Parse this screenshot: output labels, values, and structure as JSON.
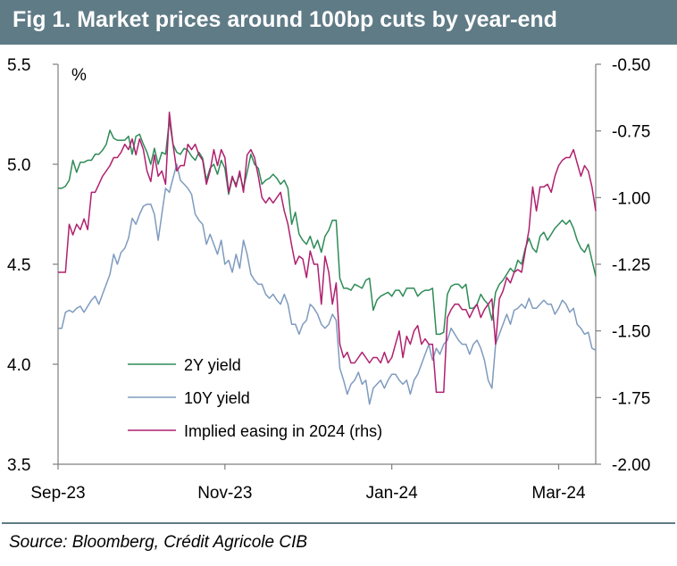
{
  "header": {
    "title": "Fig 1. Market prices around 100bp cuts by year-end"
  },
  "footer": {
    "source": "Source: Bloomberg, Crédit Agricole CIB"
  },
  "colors": {
    "title_bg": "#5f7b86",
    "yield2y": "#2e8b57",
    "yield10y": "#7f9bbf",
    "easing": "#b0206f"
  },
  "chart_data": {
    "type": "line",
    "title": "Fig 1. Market prices around 100bp cuts by year-end",
    "ylabel": "%",
    "ylim": [
      3.5,
      5.5
    ],
    "y_ticks": [
      "5.5",
      "5.0",
      "4.5",
      "4.0",
      "3.5"
    ],
    "y2lim": [
      -2.0,
      -0.5
    ],
    "y2_ticks": [
      "-0.50",
      "-0.75",
      "-1.00",
      "-1.25",
      "-1.50",
      "-1.75",
      "-2.00"
    ],
    "x_ticks": [
      "Sep-23",
      "Nov-23",
      "Jan-24",
      "Mar-24"
    ],
    "x_tick_index": [
      0,
      45,
      90,
      135
    ],
    "grid": false,
    "legend_position": "bottom-left",
    "series": [
      {
        "name": "2Y yield",
        "axis": "left",
        "values": [
          4.88,
          4.88,
          4.89,
          4.92,
          5.02,
          4.96,
          5.01,
          5.01,
          5.02,
          5.02,
          5.05,
          5.05,
          5.07,
          5.1,
          5.17,
          5.13,
          5.12,
          5.12,
          5.12,
          5.14,
          5.05,
          5.14,
          5.15,
          5.1,
          5.06,
          5.0,
          5.08,
          5.0,
          5.06,
          5.05,
          5.22,
          5.1,
          5.06,
          5.05,
          5.08,
          5.07,
          5.04,
          5.02,
          5.06,
          5.03,
          4.92,
          4.98,
          5.0,
          4.95,
          5.02,
          4.98,
          4.85,
          4.93,
          4.9,
          4.95,
          4.88,
          4.96,
          5.05,
          5.0,
          4.98,
          4.9,
          4.92,
          4.93,
          4.95,
          4.93,
          4.9,
          4.92,
          4.88,
          4.7,
          4.76,
          4.65,
          4.62,
          4.6,
          4.64,
          4.58,
          4.62,
          4.56,
          4.64,
          4.67,
          4.72,
          4.72,
          4.43,
          4.38,
          4.38,
          4.37,
          4.4,
          4.39,
          4.38,
          4.42,
          4.43,
          4.27,
          4.32,
          4.34,
          4.35,
          4.36,
          4.34,
          4.37,
          4.37,
          4.34,
          4.38,
          4.38,
          4.38,
          4.34,
          4.36,
          4.37,
          4.37,
          4.38,
          4.15,
          4.15,
          4.16,
          4.35,
          4.39,
          4.4,
          4.4,
          4.38,
          4.4,
          4.28,
          4.28,
          4.3,
          4.35,
          4.32,
          4.3,
          4.22,
          4.36,
          4.4,
          4.42,
          4.45,
          4.48,
          4.46,
          4.52,
          4.5,
          4.58,
          4.63,
          4.58,
          4.56,
          4.64,
          4.66,
          4.62,
          4.65,
          4.68,
          4.7,
          4.72,
          4.7,
          4.72,
          4.68,
          4.62,
          4.58,
          4.56,
          4.6,
          4.52,
          4.44
        ]
      },
      {
        "name": "10Y yield",
        "axis": "left",
        "values": [
          4.18,
          4.18,
          4.26,
          4.27,
          4.26,
          4.28,
          4.29,
          4.26,
          4.29,
          4.32,
          4.34,
          4.3,
          4.35,
          4.4,
          4.45,
          4.55,
          4.5,
          4.56,
          4.58,
          4.63,
          4.73,
          4.7,
          4.75,
          4.79,
          4.8,
          4.8,
          4.75,
          4.62,
          4.75,
          4.88,
          4.86,
          4.93,
          5.0,
          4.92,
          4.9,
          4.88,
          4.85,
          4.75,
          4.72,
          4.7,
          4.6,
          4.65,
          4.6,
          4.55,
          4.62,
          4.5,
          4.52,
          4.46,
          4.55,
          4.48,
          4.62,
          4.55,
          4.45,
          4.42,
          4.4,
          4.4,
          4.35,
          4.33,
          4.35,
          4.32,
          4.3,
          4.35,
          4.3,
          4.2,
          4.2,
          4.15,
          4.2,
          4.22,
          4.3,
          4.28,
          4.25,
          4.2,
          4.18,
          4.2,
          4.25,
          4.22,
          3.98,
          3.92,
          3.85,
          3.9,
          3.92,
          3.96,
          3.9,
          3.92,
          3.8,
          3.88,
          3.9,
          3.92,
          3.88,
          3.92,
          3.95,
          3.95,
          3.92,
          3.9,
          3.92,
          3.85,
          3.92,
          3.95,
          4.0,
          4.05,
          4.1,
          4.02,
          4.08,
          4.05,
          4.1,
          4.12,
          4.18,
          4.15,
          4.12,
          4.1,
          4.1,
          4.05,
          4.1,
          4.12,
          4.08,
          4.02,
          3.92,
          3.88,
          4.1,
          4.15,
          4.2,
          4.25,
          4.2,
          4.27,
          4.28,
          4.3,
          4.28,
          4.33,
          4.28,
          4.28,
          4.3,
          4.32,
          4.3,
          4.3,
          4.25,
          4.28,
          4.32,
          4.3,
          4.26,
          4.28,
          4.2,
          4.18,
          4.15,
          4.16,
          4.08,
          4.07
        ]
      },
      {
        "name": "Implied easing in 2024 (rhs)",
        "axis": "right",
        "values": [
          -1.28,
          -1.28,
          -1.28,
          -1.1,
          -1.14,
          -1.1,
          -1.12,
          -1.08,
          -1.12,
          -0.98,
          -0.98,
          -0.95,
          -0.92,
          -0.9,
          -0.88,
          -0.85,
          -0.85,
          -0.83,
          -0.8,
          -0.82,
          -0.78,
          -0.84,
          -0.78,
          -0.82,
          -0.9,
          -0.94,
          -0.84,
          -0.92,
          -0.9,
          -0.95,
          -0.68,
          -0.8,
          -0.9,
          -0.88,
          -0.88,
          -0.8,
          -0.82,
          -0.8,
          -0.84,
          -0.86,
          -0.95,
          -0.9,
          -0.82,
          -0.88,
          -0.82,
          -0.85,
          -0.98,
          -0.92,
          -0.96,
          -0.9,
          -0.98,
          -0.84,
          -0.82,
          -0.85,
          -0.92,
          -1.0,
          -1.02,
          -1.0,
          -1.02,
          -1.0,
          -0.98,
          -1.05,
          -1.1,
          -1.18,
          -1.25,
          -1.22,
          -1.23,
          -1.3,
          -1.2,
          -1.25,
          -1.25,
          -1.4,
          -1.22,
          -1.28,
          -1.4,
          -1.32,
          -1.55,
          -1.6,
          -1.58,
          -1.62,
          -1.62,
          -1.6,
          -1.58,
          -1.6,
          -1.62,
          -1.6,
          -1.6,
          -1.62,
          -1.58,
          -1.62,
          -1.6,
          -1.55,
          -1.5,
          -1.6,
          -1.52,
          -1.55,
          -1.5,
          -1.48,
          -1.55,
          -1.53,
          -1.55,
          -1.55,
          -1.73,
          -1.73,
          -1.73,
          -1.45,
          -1.42,
          -1.4,
          -1.4,
          -1.42,
          -1.42,
          -1.45,
          -1.42,
          -1.4,
          -1.45,
          -1.42,
          -1.4,
          -1.38,
          -1.55,
          -1.38,
          -1.35,
          -1.3,
          -1.32,
          -1.28,
          -1.27,
          -1.28,
          -1.2,
          -1.12,
          -0.96,
          -1.05,
          -0.96,
          -0.96,
          -0.95,
          -0.98,
          -0.92,
          -0.88,
          -0.86,
          -0.85,
          -0.85,
          -0.82,
          -0.87,
          -0.92,
          -0.88,
          -0.9,
          -0.96,
          -1.05
        ]
      }
    ]
  }
}
